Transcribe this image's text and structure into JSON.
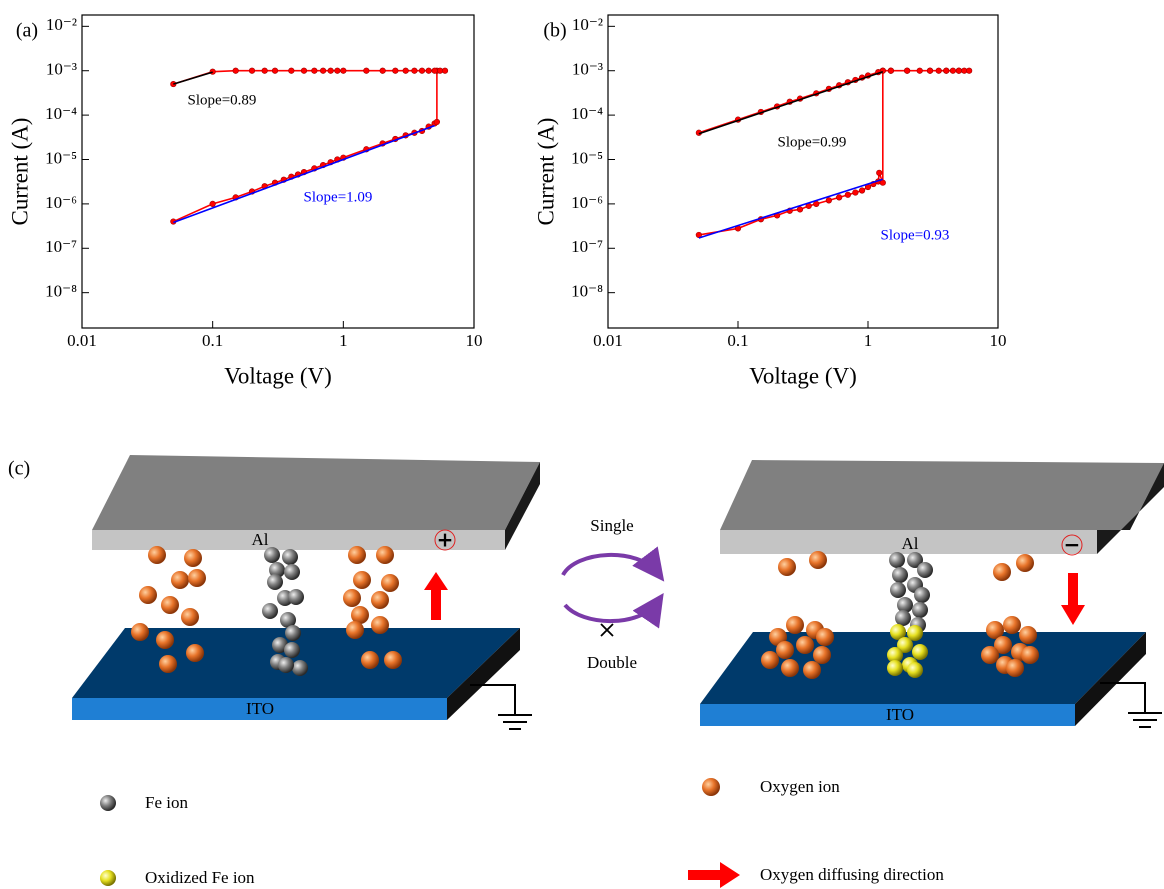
{
  "chart_data": [
    {
      "type": "line",
      "panel_label": "(a)",
      "x_label": "Voltage (V)",
      "y_label": "Current (A)",
      "xscale": "log",
      "yscale": "log",
      "xlim": [
        0.01,
        10
      ],
      "ylim": [
        1.6e-09,
        0.018
      ],
      "xticks": [
        0.01,
        0.1,
        1,
        10
      ],
      "yticks": [
        {
          "value": 0.01,
          "label": "10⁻²"
        },
        {
          "value": 0.001,
          "label": "10⁻³"
        },
        {
          "value": 0.0001,
          "label": "10⁻⁴"
        },
        {
          "value": 1e-05,
          "label": "10⁻⁵"
        },
        {
          "value": 1e-06,
          "label": "10⁻⁶"
        },
        {
          "value": 1e-07,
          "label": "10⁻⁷"
        },
        {
          "value": 1e-08,
          "label": "10⁻⁸"
        }
      ],
      "series": [
        {
          "color": "#ff0000",
          "marker": true,
          "x": [
            0.05,
            0.1,
            0.15,
            0.2,
            0.25,
            0.3,
            0.35,
            0.4,
            0.45,
            0.5,
            0.6,
            0.7,
            0.8,
            0.9,
            1,
            1.5,
            2,
            2.5,
            3,
            3.5,
            4,
            4.5,
            5,
            5.2,
            5.2,
            5.5,
            6,
            5,
            4.5,
            4,
            3.5,
            3,
            2.5,
            2,
            1.5,
            1,
            0.9,
            0.8,
            0.7,
            0.6,
            0.5,
            0.4,
            0.3,
            0.25,
            0.2,
            0.15,
            0.1,
            0.05
          ],
          "values": [
            4e-07,
            1e-06,
            1.4e-06,
            1.9e-06,
            2.5e-06,
            3e-06,
            3.5e-06,
            4.1e-06,
            4.6e-06,
            5.2e-06,
            6.3e-06,
            7.5e-06,
            8.7e-06,
            1e-05,
            1.1e-05,
            1.7e-05,
            2.3e-05,
            2.9e-05,
            3.5e-05,
            4e-05,
            4.4e-05,
            5.5e-05,
            6.5e-05,
            7e-05,
            0.001,
            0.001,
            0.001,
            0.001,
            0.001,
            0.001,
            0.001,
            0.001,
            0.001,
            0.001,
            0.001,
            0.001,
            0.001,
            0.001,
            0.001,
            0.001,
            0.001,
            0.001,
            0.001,
            0.001,
            0.001,
            0.001,
            0.00095,
            0.0005
          ]
        },
        {
          "color": "#000000",
          "x": [
            0.05,
            0.1
          ],
          "values": [
            0.0005,
            0.00093
          ]
        },
        {
          "color": "#0000ff",
          "x": [
            0.05,
            5
          ],
          "values": [
            3.8e-07,
            5.8e-05
          ]
        }
      ],
      "annotations": [
        {
          "text": "Slope=0.89",
          "color": "#000000"
        },
        {
          "text": "Slope=1.09",
          "color": "#0000ff"
        }
      ]
    },
    {
      "type": "line",
      "panel_label": "(b)",
      "x_label": "Voltage (V)",
      "y_label": "Current (A)",
      "xscale": "log",
      "yscale": "log",
      "xlim": [
        0.01,
        10
      ],
      "ylim": [
        1.6e-09,
        0.018
      ],
      "xticks": [
        0.01,
        0.1,
        1,
        10
      ],
      "yticks": [
        {
          "value": 0.01,
          "label": "10⁻²"
        },
        {
          "value": 0.001,
          "label": "10⁻³"
        },
        {
          "value": 0.0001,
          "label": "10⁻⁴"
        },
        {
          "value": 1e-05,
          "label": "10⁻⁵"
        },
        {
          "value": 1e-06,
          "label": "10⁻⁶"
        },
        {
          "value": 1e-07,
          "label": "10⁻⁷"
        },
        {
          "value": 1e-08,
          "label": "10⁻⁸"
        }
      ],
      "series": [
        {
          "color": "#ff0000",
          "marker": true,
          "x": [
            0.05,
            0.1,
            0.15,
            0.2,
            0.25,
            0.3,
            0.35,
            0.4,
            0.5,
            0.6,
            0.7,
            0.8,
            0.9,
            1,
            1.1,
            1.2,
            1.22,
            1.3,
            1.3,
            1.5,
            2,
            2.5,
            3,
            3.5,
            4,
            4.5,
            5,
            5.5,
            6,
            5,
            4,
            3,
            2,
            1.5,
            1.3,
            1.2,
            1,
            0.9,
            0.8,
            0.7,
            0.6,
            0.5,
            0.4,
            0.3,
            0.25,
            0.2,
            0.15,
            0.1,
            0.05
          ],
          "values": [
            2e-07,
            2.8e-07,
            4.5e-07,
            5.5e-07,
            7e-07,
            7.5e-07,
            9e-07,
            1e-06,
            1.2e-06,
            1.4e-06,
            1.6e-06,
            1.8e-06,
            2e-06,
            2.4e-06,
            2.8e-06,
            3.2e-06,
            5e-06,
            3e-06,
            0.001,
            0.001,
            0.001,
            0.001,
            0.001,
            0.001,
            0.001,
            0.001,
            0.001,
            0.001,
            0.001,
            0.001,
            0.001,
            0.001,
            0.001,
            0.001,
            0.001,
            0.00093,
            0.00078,
            0.0007,
            0.00062,
            0.00055,
            0.00047,
            0.00039,
            0.00031,
            0.000235,
            0.0002,
            0.000157,
            0.000118,
            7.9e-05,
            4e-05
          ]
        },
        {
          "color": "#000000",
          "x": [
            0.05,
            1.3
          ],
          "values": [
            3.8e-05,
            0.00095
          ]
        },
        {
          "color": "#0000ff",
          "x": [
            0.05,
            1.3
          ],
          "values": [
            1.7e-07,
            3.6e-06
          ]
        }
      ],
      "annotations": [
        {
          "text": "Slope=0.99",
          "color": "#000000"
        },
        {
          "text": "Slope=0.93",
          "color": "#0000ff"
        }
      ]
    }
  ],
  "diagram": {
    "panel_label": "(c)",
    "left": {
      "top_electrode": "Al",
      "bottom_electrode": "ITO",
      "polarity": "+"
    },
    "right": {
      "top_electrode": "Al",
      "bottom_electrode": "ITO",
      "polarity": "−"
    },
    "cycle": {
      "top": "Single",
      "bottom": "Double"
    },
    "legend": [
      {
        "label": "Fe ion"
      },
      {
        "label": "Oxidized Fe ion"
      },
      {
        "label": "Oxygen ion"
      },
      {
        "label": "Oxygen diffusing direction"
      }
    ]
  }
}
